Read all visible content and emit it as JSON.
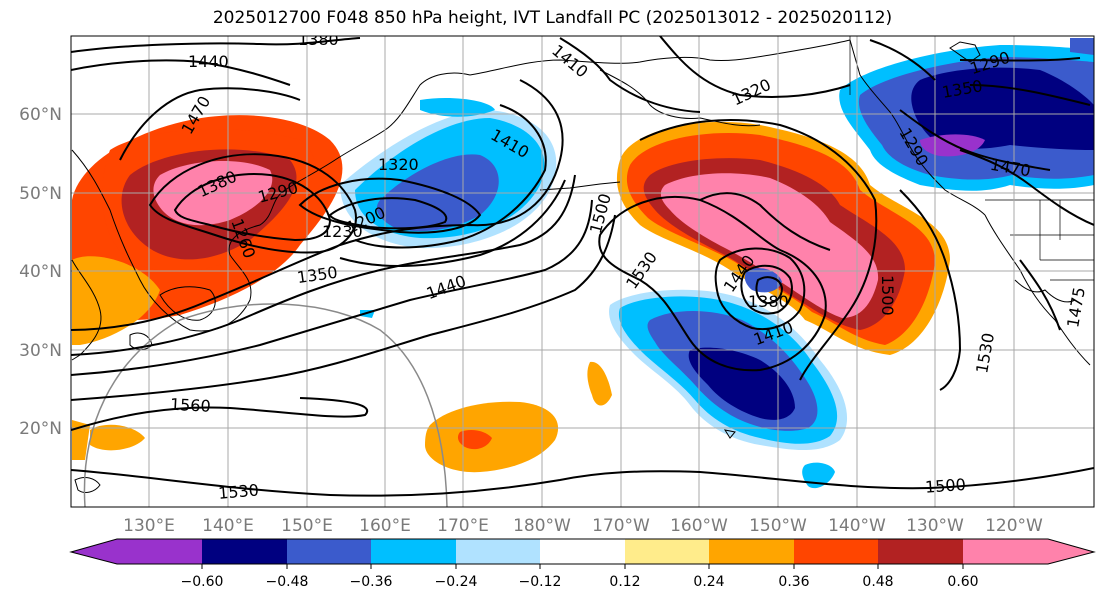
{
  "title": "2025012700 F048 850 hPa height, IVT Landfall PC (2025013012 - 2025020112)",
  "latitude_labels": [
    "60°N",
    "50°N",
    "40°N",
    "30°N",
    "20°N"
  ],
  "longitude_labels": [
    "130°E",
    "140°E",
    "150°E",
    "160°E",
    "170°E",
    "180°W",
    "170°W",
    "160°W",
    "150°W",
    "140°W",
    "130°W",
    "120°W"
  ],
  "contour_labels": [
    "1380",
    "1440",
    "1470",
    "1410",
    "1320",
    "1290",
    "1380",
    "1290",
    "1320",
    "1410",
    "1350",
    "1290",
    "1470",
    "1260",
    "1200",
    "1230",
    "1350",
    "1440",
    "1500",
    "1530",
    "1440",
    "1380",
    "1410",
    "1500",
    "1530",
    "1475",
    "1560",
    "1530",
    "1500"
  ],
  "colorbar": {
    "ticks": [
      "−0.60",
      "−0.48",
      "−0.36",
      "−0.24",
      "−0.12",
      "0.12",
      "0.24",
      "0.36",
      "0.48",
      "0.60"
    ],
    "colors": [
      "#9932cc",
      "#000080",
      "#3b5bcc",
      "#00bfff",
      "#b0e2ff",
      "#ffffff",
      "#ffec8b",
      "#ffa500",
      "#ff4500",
      "#b22222",
      "#ff82ab"
    ]
  }
}
